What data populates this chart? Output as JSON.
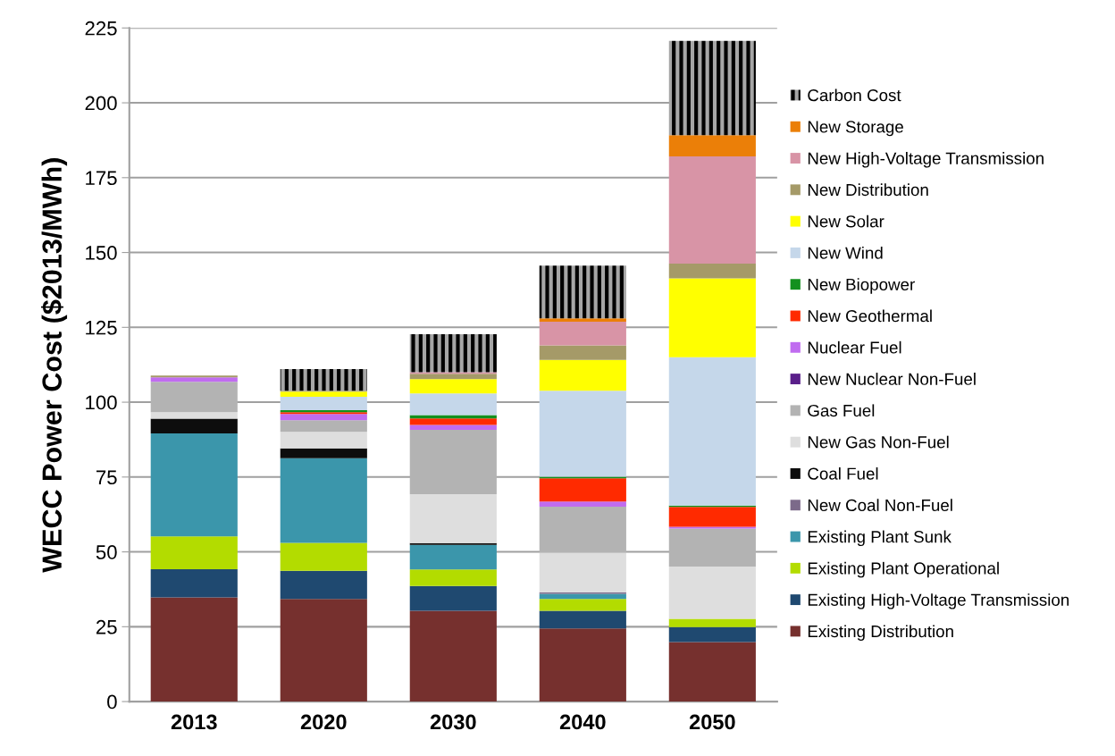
{
  "chart_data": {
    "type": "bar",
    "stacked": true,
    "ylabel": "WECC Power Cost ($2013/MWh)",
    "categories": [
      "2013",
      "2020",
      "2030",
      "2040",
      "2050"
    ],
    "ylim": [
      0,
      225
    ],
    "yticks": [
      0,
      25,
      50,
      75,
      100,
      125,
      150,
      175,
      200,
      225
    ],
    "grid": "y",
    "legend": "right",
    "series": [
      {
        "name": "Existing Distribution",
        "color": "#76302e",
        "values": [
          34.8,
          34.3,
          30.3,
          24.4,
          19.9
        ]
      },
      {
        "name": "Existing High-Voltage Transmission",
        "color": "#1f4970",
        "values": [
          9.4,
          9.4,
          8.3,
          5.9,
          5.0
        ]
      },
      {
        "name": "Existing Plant Operational",
        "color": "#b3dc00",
        "values": [
          11.0,
          9.3,
          5.5,
          4.0,
          2.7
        ]
      },
      {
        "name": "Existing Plant Sunk",
        "color": "#3b96ab",
        "values": [
          34.4,
          28.3,
          8.2,
          1.7,
          0
        ]
      },
      {
        "name": "New Coal Non-Fuel",
        "color": "#7c6a8a",
        "values": [
          0,
          0,
          0,
          0.5,
          0
        ]
      },
      {
        "name": "Coal Fuel",
        "color": "#0d0d0d",
        "values": [
          4.9,
          3.3,
          0.6,
          0,
          0
        ]
      },
      {
        "name": "New Gas Non-Fuel",
        "color": "#dedede",
        "values": [
          2.2,
          5.5,
          16.4,
          13.2,
          17.5
        ]
      },
      {
        "name": "Gas Fuel",
        "color": "#b3b3b3",
        "values": [
          10.1,
          3.9,
          21.5,
          15.4,
          12.7
        ]
      },
      {
        "name": "New Nuclear Non-Fuel",
        "color": "#5a1f8a",
        "values": [
          0,
          0,
          0,
          0,
          0
        ]
      },
      {
        "name": "Nuclear Fuel",
        "color": "#c06cf0",
        "values": [
          1.5,
          2.1,
          1.6,
          1.7,
          0.6
        ]
      },
      {
        "name": "New Geothermal",
        "color": "#ff2a00",
        "values": [
          0,
          0.6,
          2.2,
          7.8,
          6.6
        ]
      },
      {
        "name": "New Biopower",
        "color": "#13901e",
        "values": [
          0,
          0.6,
          1.1,
          0.5,
          0.5
        ]
      },
      {
        "name": "New Wind",
        "color": "#c5d7ea",
        "values": [
          0,
          4.5,
          7.2,
          28.7,
          49.5
        ]
      },
      {
        "name": "New Solar",
        "color": "#ffff00",
        "values": [
          0,
          1.7,
          4.8,
          10.3,
          26.4
        ]
      },
      {
        "name": "New Distribution",
        "color": "#a59a68",
        "values": [
          0.6,
          0.3,
          1.8,
          4.9,
          4.9
        ]
      },
      {
        "name": "New High-Voltage Transmission",
        "color": "#d894a6",
        "values": [
          0,
          0,
          0.5,
          7.9,
          35.8
        ]
      },
      {
        "name": "New Storage",
        "color": "#eb7f08",
        "values": [
          0,
          0,
          0,
          1.1,
          7.1
        ]
      },
      {
        "name": "Carbon Cost",
        "color": "#a6a6a6",
        "values": [
          0,
          7.3,
          12.7,
          17.6,
          31.5
        ]
      }
    ]
  }
}
